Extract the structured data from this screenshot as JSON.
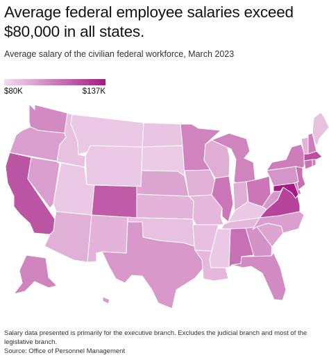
{
  "title": "Average federal employee salaries exceed $80,000 in all states.",
  "subtitle": "Average salary of the civilian federal workforce, March 2023",
  "legend": {
    "min_label": "$80K",
    "max_label": "$137K",
    "min_value": 80,
    "max_value": 137,
    "color_low": "#f3dcf0",
    "color_high": "#a51b83"
  },
  "footer": {
    "note": "Salary data presented is primarily for the executive branch. Excludes the judicial branch and most of the legislative branch.",
    "source": "Source: Office of Personnel Management"
  },
  "map": {
    "unit": "thousand USD",
    "states": {
      "WA": 104,
      "OR": 98,
      "CA": 120,
      "NV": 98,
      "ID": 88,
      "MT": 86,
      "WY": 86,
      "UT": 86,
      "AZ": 93,
      "NM": 92,
      "CO": 118,
      "ND": 87,
      "SD": 85,
      "NE": 96,
      "KS": 92,
      "OK": 88,
      "TX": 100,
      "MN": 106,
      "IA": 93,
      "MO": 91,
      "AR": 89,
      "LA": 91,
      "WI": 94,
      "IL": 110,
      "MI": 106,
      "IN": 94,
      "OH": 110,
      "KY": 86,
      "TN": 91,
      "MS": 86,
      "AL": 112,
      "GA": 102,
      "FL": 104,
      "SC": 96,
      "NC": 98,
      "VA": 125,
      "WV": 100,
      "MD": 137,
      "DE": 108,
      "PA": 101,
      "NJ": 112,
      "NY": 108,
      "CT": 112,
      "RI": 108,
      "MA": 122,
      "VT": 92,
      "NH": 108,
      "ME": 88,
      "AK": 106,
      "HI": 100
    }
  }
}
